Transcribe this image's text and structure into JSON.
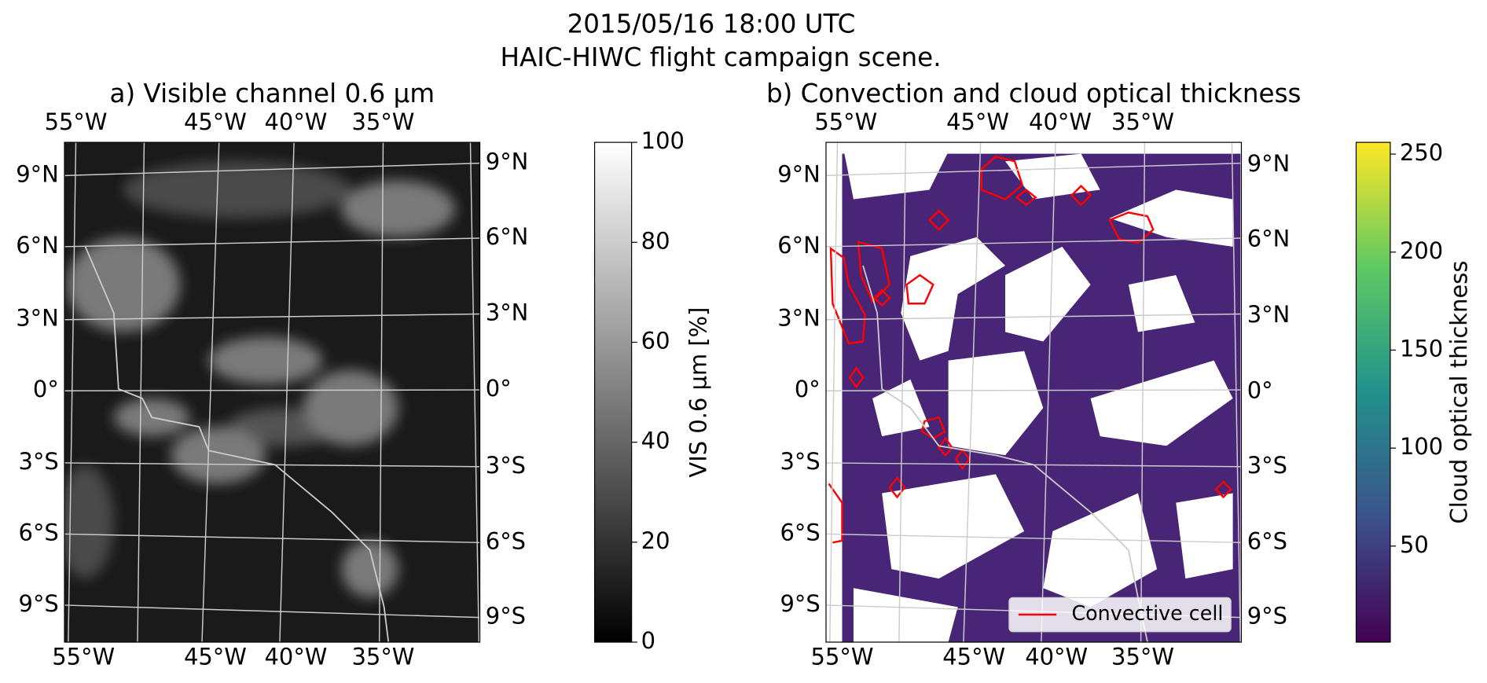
{
  "title": [
    "2015/05/16 18:00 UTC",
    "HAIC-HIWC flight campaign scene."
  ],
  "panels": [
    {
      "title": "a) Visible channel 0.6 μm",
      "lon_labels_top": [
        "55°W",
        "45°W",
        "40°W",
        "35°W"
      ],
      "lon_labels_bottom": [
        "55°W",
        "45°W",
        "40°W",
        "35°W"
      ],
      "lat_labels_left": [
        "9°N",
        "6°N",
        "3°N",
        "0°",
        "3°S",
        "6°S",
        "9°S"
      ],
      "lat_labels_right": [
        "9°N",
        "6°N",
        "3°N",
        "0°",
        "3°S",
        "6°S",
        "9°S"
      ],
      "colorbar": {
        "label": "VIS 0.6 μm [%]",
        "lim": [
          0,
          100
        ],
        "ticks": [
          0,
          20,
          40,
          60,
          80,
          100
        ],
        "colormap": "gray"
      }
    },
    {
      "title": "b) Convection and cloud optical thickness",
      "lon_labels_top": [
        "55°W",
        "45°W",
        "40°W",
        "35°W"
      ],
      "lon_labels_bottom": [
        "55°W",
        "45°W",
        "40°W",
        "35°W"
      ],
      "lat_labels_left": [
        "9°N",
        "6°N",
        "3°N",
        "0°",
        "3°S",
        "6°S",
        "9°S"
      ],
      "lat_labels_right": [
        "9°N",
        "6°N",
        "3°N",
        "0°",
        "3°S",
        "6°S",
        "9°S"
      ],
      "colorbar": {
        "label": "Cloud optical thickness",
        "lim": [
          1,
          256
        ],
        "ticks": [
          50,
          100,
          150,
          200,
          250
        ],
        "colormap": "viridis"
      },
      "legend": {
        "label": "Convective cell",
        "color": "#ff0000"
      }
    }
  ]
}
